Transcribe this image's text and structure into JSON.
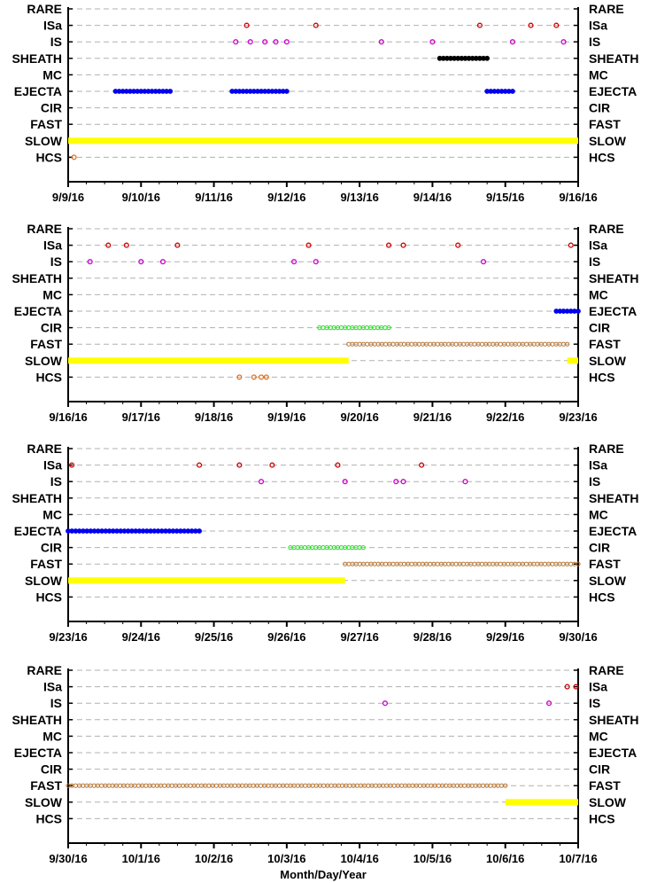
{
  "colors": {
    "ISa": "#cc0000",
    "IS": "#cc00cc",
    "SHEATH": "#000000",
    "EJECTA": "#0000ee",
    "CIR": "#22dd22",
    "FAST": "#b8732e",
    "SLOW": "#ffff00",
    "HCS": "#e07020",
    "grid": "#b0b0b0"
  },
  "chart_data": [
    {
      "type": "scatter",
      "categories": [
        "RARE",
        "ISa",
        "IS",
        "SHEATH",
        "MC",
        "EJECTA",
        "CIR",
        "FAST",
        "SLOW",
        "HCS"
      ],
      "x_tick_labels": [
        "9/9/16",
        "9/10/16",
        "9/11/16",
        "9/12/16",
        "9/13/16",
        "9/14/16",
        "9/15/16",
        "9/16/16"
      ],
      "xlim_days": [
        0,
        7
      ],
      "xlabel": "",
      "series": [
        {
          "category": "ISa",
          "points": [
            2.45,
            3.4,
            5.65,
            6.35,
            6.7
          ]
        },
        {
          "category": "IS",
          "points": [
            2.3,
            2.5,
            2.7,
            2.85,
            3.0,
            4.3,
            5.0,
            6.1,
            6.8
          ]
        },
        {
          "category": "SHEATH",
          "ranges": [
            [
              5.1,
              5.75
            ]
          ]
        },
        {
          "category": "EJECTA",
          "ranges": [
            [
              0.65,
              1.4
            ],
            [
              2.25,
              3.0
            ],
            [
              5.75,
              6.1
            ]
          ]
        },
        {
          "category": "SLOW",
          "ranges": [
            [
              0.0,
              7.0
            ]
          ]
        },
        {
          "category": "HCS",
          "points": [
            0.08
          ]
        }
      ]
    },
    {
      "type": "scatter",
      "categories": [
        "RARE",
        "ISa",
        "IS",
        "SHEATH",
        "MC",
        "EJECTA",
        "CIR",
        "FAST",
        "SLOW",
        "HCS"
      ],
      "x_tick_labels": [
        "9/16/16",
        "9/17/16",
        "9/18/16",
        "9/19/16",
        "9/20/16",
        "9/21/16",
        "9/22/16",
        "9/23/16"
      ],
      "xlim_days": [
        0,
        7
      ],
      "xlabel": "",
      "series": [
        {
          "category": "ISa",
          "points": [
            0.55,
            0.8,
            1.5,
            3.3,
            4.4,
            4.6,
            5.35,
            6.9
          ]
        },
        {
          "category": "IS",
          "points": [
            0.3,
            1.0,
            1.3,
            3.1,
            3.4,
            5.7
          ]
        },
        {
          "category": "EJECTA",
          "ranges": [
            [
              6.7,
              7.0
            ]
          ]
        },
        {
          "category": "CIR",
          "ranges": [
            [
              3.45,
              4.4
            ]
          ]
        },
        {
          "category": "FAST",
          "ranges": [
            [
              3.85,
              6.85
            ]
          ]
        },
        {
          "category": "SLOW",
          "ranges": [
            [
              0.0,
              3.85
            ],
            [
              6.85,
              7.0
            ]
          ]
        },
        {
          "category": "HCS",
          "points": [
            2.35,
            2.55,
            2.65,
            2.72
          ]
        }
      ]
    },
    {
      "type": "scatter",
      "categories": [
        "RARE",
        "ISa",
        "IS",
        "SHEATH",
        "MC",
        "EJECTA",
        "CIR",
        "FAST",
        "SLOW",
        "HCS"
      ],
      "x_tick_labels": [
        "9/23/16",
        "9/24/16",
        "9/25/16",
        "9/26/16",
        "9/27/16",
        "9/28/16",
        "9/29/16",
        "9/30/16"
      ],
      "xlim_days": [
        0,
        7
      ],
      "xlabel": "",
      "series": [
        {
          "category": "ISa",
          "points": [
            0.05,
            1.8,
            2.35,
            2.8,
            3.7,
            4.85
          ]
        },
        {
          "category": "IS",
          "points": [
            2.65,
            3.8,
            4.5,
            4.6,
            5.45
          ]
        },
        {
          "category": "EJECTA",
          "ranges": [
            [
              0.0,
              1.8
            ]
          ]
        },
        {
          "category": "CIR",
          "ranges": [
            [
              3.05,
              4.05
            ]
          ]
        },
        {
          "category": "FAST",
          "ranges": [
            [
              3.8,
              7.0
            ]
          ]
        },
        {
          "category": "SLOW",
          "ranges": [
            [
              0.0,
              3.8
            ]
          ]
        }
      ]
    },
    {
      "type": "scatter",
      "categories": [
        "RARE",
        "ISa",
        "IS",
        "SHEATH",
        "MC",
        "EJECTA",
        "CIR",
        "FAST",
        "SLOW",
        "HCS"
      ],
      "x_tick_labels": [
        "9/30/16",
        "10/1/16",
        "10/2/16",
        "10/3/16",
        "10/4/16",
        "10/5/16",
        "10/6/16",
        "10/7/16"
      ],
      "xlim_days": [
        0,
        7
      ],
      "xlabel": "Month/Day/Year",
      "series": [
        {
          "category": "ISa",
          "points": [
            6.85,
            6.97
          ]
        },
        {
          "category": "IS",
          "points": [
            4.35,
            6.6
          ]
        },
        {
          "category": "FAST",
          "ranges": [
            [
              0.0,
              6.0
            ]
          ]
        },
        {
          "category": "SLOW",
          "ranges": [
            [
              6.0,
              7.0
            ]
          ]
        }
      ]
    }
  ]
}
